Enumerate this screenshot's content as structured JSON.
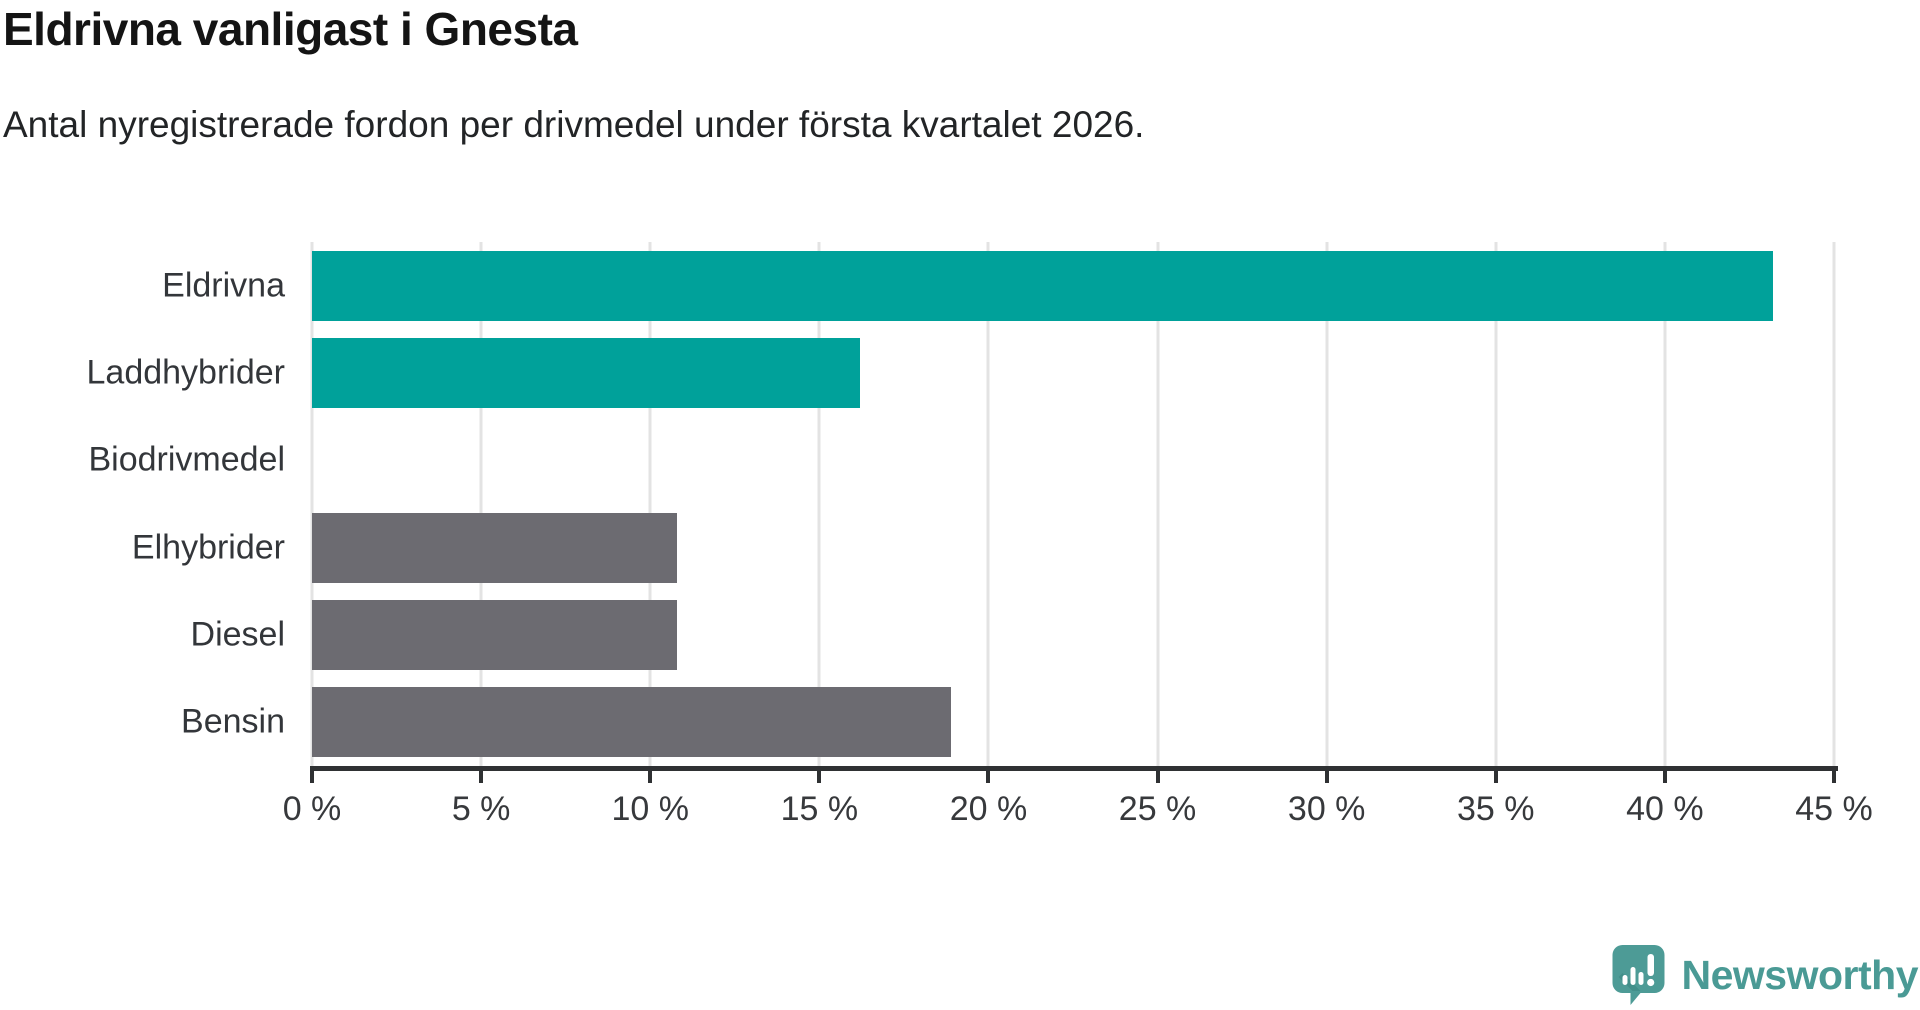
{
  "header": {
    "title": "Eldrivna vanligast i Gnesta",
    "subtitle": "Antal nyregistrerade fordon per drivmedel under första kvartalet 2026."
  },
  "chart_data": {
    "type": "bar",
    "orientation": "horizontal",
    "title": "Eldrivna vanligast i Gnesta",
    "subtitle": "Antal nyregistrerade fordon per drivmedel under första kvartalet 2026.",
    "categories": [
      "Eldrivna",
      "Laddhybrider",
      "Biodrivmedel",
      "Elhybrider",
      "Diesel",
      "Bensin"
    ],
    "values": [
      43.2,
      16.2,
      0,
      10.8,
      10.8,
      18.9
    ],
    "unit": "%",
    "xlim": [
      0,
      45
    ],
    "x_ticks": [
      0,
      5,
      10,
      15,
      20,
      25,
      30,
      35,
      40,
      45
    ],
    "x_tick_labels": [
      "0 %",
      "5 %",
      "10 %",
      "15 %",
      "20 %",
      "25 %",
      "30 %",
      "35 %",
      "40 %",
      "45 %"
    ],
    "bar_colors": [
      "#00a19a",
      "#00a19a",
      "#00a19a",
      "#6c6b71",
      "#6c6b71",
      "#6c6b71"
    ],
    "grid": true,
    "legend": false,
    "colors": {
      "highlight": "#00a19a",
      "neutral": "#6c6b71",
      "gridline": "#e3e3e3",
      "axis": "#2f3133"
    }
  },
  "footer": {
    "logo_text": "Newsworthy",
    "logo_icon": "newsworthy-speech-bubble-chart-icon",
    "logo_color": "#4a9a95"
  }
}
